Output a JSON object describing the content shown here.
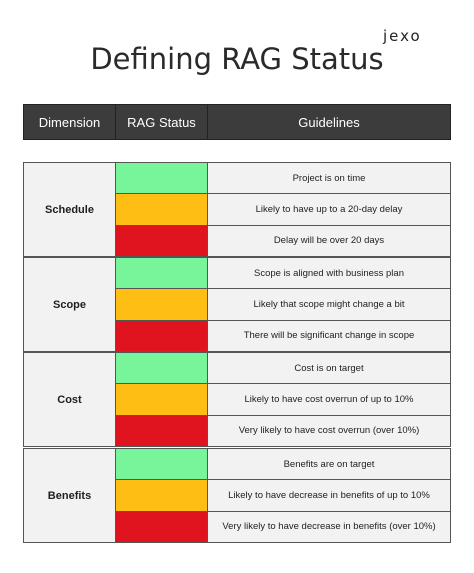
{
  "logo": "jexo",
  "title": "Defining RAG Status",
  "headers": [
    "Dimension",
    "RAG Status",
    "Guidelines"
  ],
  "colors": {
    "green": "#78f59a",
    "amber": "#ffbe14",
    "red": "#e0141e"
  },
  "groups": [
    {
      "dimension": "Schedule",
      "guidelines": [
        "Project is on time",
        "Likely to have up to a 20-day delay",
        "Delay will be over 20 days"
      ]
    },
    {
      "dimension": "Scope",
      "guidelines": [
        "Scope is aligned with business plan",
        "Likely that scope might change a bit",
        "There will be  significant change in scope"
      ]
    },
    {
      "dimension": "Cost",
      "guidelines": [
        "Cost is on target",
        "Likely to have cost overrun of up to 10%",
        "Very likely to have cost overrun (over 10%)"
      ]
    },
    {
      "dimension": "Benefits",
      "guidelines": [
        "Benefits are on target",
        "Likely to have decrease in benefits of up to 10%",
        "Very likely to have decrease in benefits (over 10%)"
      ]
    }
  ]
}
